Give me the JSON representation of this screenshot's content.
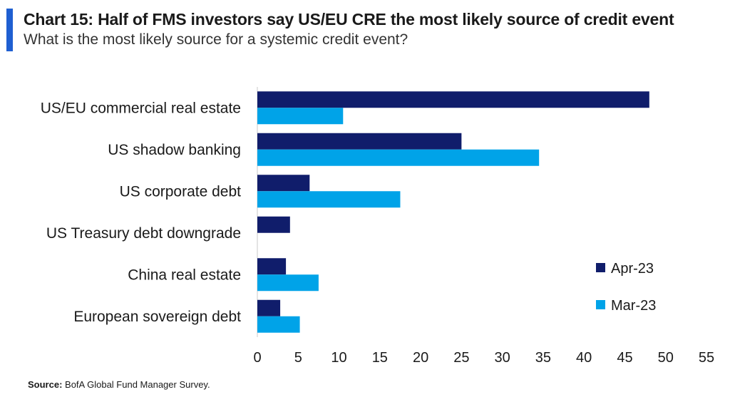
{
  "header": {
    "title": "Chart 15: Half of FMS investors say US/EU CRE the most likely source of credit event",
    "subtitle": "What is the most likely source for a systemic credit event?"
  },
  "footer": {
    "source_label": "Source:",
    "source_text": "BofA Global Fund Manager Survey."
  },
  "colors": {
    "accent_bar": "#1f5fd1"
  },
  "chart_data": {
    "type": "bar",
    "orientation": "horizontal",
    "title": "",
    "xlabel": "",
    "ylabel": "",
    "categories": [
      "US/EU commercial real estate",
      "US shadow banking",
      "US corporate debt",
      "US Treasury debt downgrade",
      "China real estate",
      "European sovereign debt"
    ],
    "series": [
      {
        "name": "Apr-23",
        "color": "#101d6b",
        "values": [
          48,
          25,
          6.4,
          4,
          3.5,
          2.8
        ]
      },
      {
        "name": "Mar-23",
        "color": "#00a3e8",
        "values": [
          10.5,
          34.5,
          17.5,
          0,
          7.5,
          5.2
        ]
      }
    ],
    "xlim": [
      0,
      55
    ],
    "xticks": [
      0,
      5,
      10,
      15,
      20,
      25,
      30,
      35,
      40,
      45,
      50,
      55
    ],
    "grid": false,
    "legend_position": "right"
  }
}
